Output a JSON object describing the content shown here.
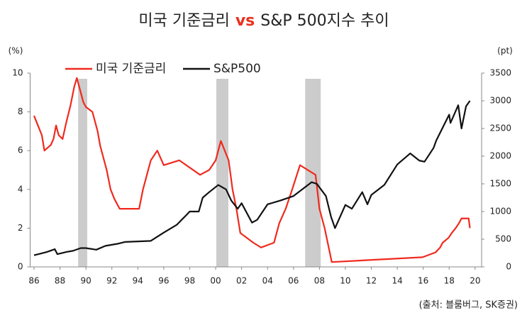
{
  "chart_data": {
    "type": "line",
    "title": "미국 기준금리",
    "title_highlight": "vs",
    "title_end": "S&P 500지수 추이",
    "title_highlight_color": "#e8321e",
    "y_unit": "(%)",
    "y2_unit": "(pt)",
    "source": "(출처: 블룸버그, SK증권)",
    "xlim": [
      1985.7,
      2020.5
    ],
    "xticks": [
      {
        "value": 1986,
        "label": "86"
      },
      {
        "value": 1988,
        "label": "88"
      },
      {
        "value": 1990,
        "label": "90"
      },
      {
        "value": 1992,
        "label": "92"
      },
      {
        "value": 1994,
        "label": "94"
      },
      {
        "value": 1996,
        "label": "96"
      },
      {
        "value": 1998,
        "label": "98"
      },
      {
        "value": 2000,
        "label": "00"
      },
      {
        "value": 2002,
        "label": "02"
      },
      {
        "value": 2004,
        "label": "04"
      },
      {
        "value": 2006,
        "label": "06"
      },
      {
        "value": 2008,
        "label": "08"
      },
      {
        "value": 2010,
        "label": "10"
      },
      {
        "value": 2012,
        "label": "12"
      },
      {
        "value": 2014,
        "label": "14"
      },
      {
        "value": 2016,
        "label": "16"
      },
      {
        "value": 2018,
        "label": "18"
      },
      {
        "value": 2020,
        "label": "20"
      }
    ],
    "ylim": [
      0,
      10
    ],
    "yticks": [
      0,
      2,
      4,
      6,
      8,
      10
    ],
    "y2lim": [
      0,
      3500
    ],
    "y2ticks": [
      0,
      500,
      1000,
      1500,
      2000,
      2500,
      3000,
      3500
    ],
    "shaded_ranges": [
      [
        1989.4,
        1990.1
      ],
      [
        2000.05,
        2000.98
      ],
      [
        2006.9,
        2008.1
      ]
    ],
    "shade_color": "#cccccc",
    "series": [
      {
        "name": "미국 기준금리",
        "color": "#f02a1e",
        "x": [
          1986.0,
          1986.3,
          1986.6,
          1986.8,
          1987.3,
          1987.5,
          1987.7,
          1987.9,
          1988.2,
          1988.5,
          1988.8,
          1989.1,
          1989.3,
          1989.6,
          1989.8,
          1990.0,
          1990.5,
          1990.9,
          1991.1,
          1991.3,
          1991.6,
          1991.9,
          1992.2,
          1992.6,
          1994.1,
          1994.4,
          1994.7,
          1995.0,
          1995.5,
          1996.0,
          1997.2,
          1998.8,
          1999.5,
          2000.0,
          2000.4,
          2001.0,
          2001.3,
          2001.6,
          2001.9,
          2002.9,
          2003.5,
          2004.5,
          2004.9,
          2005.4,
          2005.9,
          2006.5,
          2007.7,
          2008.0,
          2008.4,
          2008.95,
          2015.95,
          2016.95,
          2017.3,
          2017.5,
          2017.95,
          2018.2,
          2018.5,
          2018.75,
          2018.95,
          2019.5,
          2019.6
        ],
        "values": [
          7.8,
          7.3,
          6.8,
          6.0,
          6.3,
          6.6,
          7.3,
          6.8,
          6.6,
          7.5,
          8.3,
          9.3,
          9.75,
          9.0,
          8.5,
          8.25,
          8.0,
          7.0,
          6.25,
          5.75,
          5.0,
          4.0,
          3.5,
          3.0,
          3.0,
          4.0,
          4.75,
          5.5,
          6.0,
          5.25,
          5.5,
          4.75,
          5.0,
          5.5,
          6.5,
          5.5,
          4.0,
          3.0,
          1.75,
          1.25,
          1.0,
          1.25,
          2.25,
          3.0,
          4.0,
          5.25,
          4.75,
          3.0,
          2.0,
          0.25,
          0.5,
          0.75,
          1.0,
          1.25,
          1.5,
          1.75,
          2.0,
          2.25,
          2.5,
          2.5,
          2.0
        ]
      },
      {
        "name": "S&P500",
        "color": "#111111",
        "axis": "y2",
        "x": [
          1986.0,
          1986.5,
          1987.0,
          1987.6,
          1987.8,
          1988.5,
          1989.0,
          1989.6,
          1990.0,
          1990.8,
          1991.5,
          1992.5,
          1993.0,
          1994.0,
          1995.0,
          1996.0,
          1997.0,
          1997.8,
          1998.0,
          1998.7,
          1999.0,
          1999.5,
          2000.2,
          2000.8,
          2001.2,
          2001.7,
          2002.0,
          2002.8,
          2003.2,
          2004.0,
          2005.0,
          2006.0,
          2007.4,
          2007.8,
          2008.5,
          2008.9,
          2009.2,
          2010.0,
          2010.5,
          2011.3,
          2011.7,
          2012.0,
          2013.0,
          2014.0,
          2015.0,
          2015.7,
          2016.1,
          2016.8,
          2017.0,
          2018.0,
          2018.1,
          2018.7,
          2018.95,
          2019.3,
          2019.6
        ],
        "values": [
          211,
          240,
          270,
          320,
          230,
          270,
          290,
          340,
          340,
          310,
          380,
          420,
          450,
          460,
          470,
          620,
          760,
          950,
          1000,
          1000,
          1250,
          1350,
          1480,
          1400,
          1200,
          1050,
          1150,
          800,
          850,
          1130,
          1200,
          1280,
          1530,
          1500,
          1280,
          900,
          700,
          1120,
          1050,
          1350,
          1130,
          1300,
          1480,
          1850,
          2050,
          1920,
          1900,
          2150,
          2280,
          2750,
          2600,
          2920,
          2500,
          2900,
          3000
        ]
      }
    ]
  }
}
